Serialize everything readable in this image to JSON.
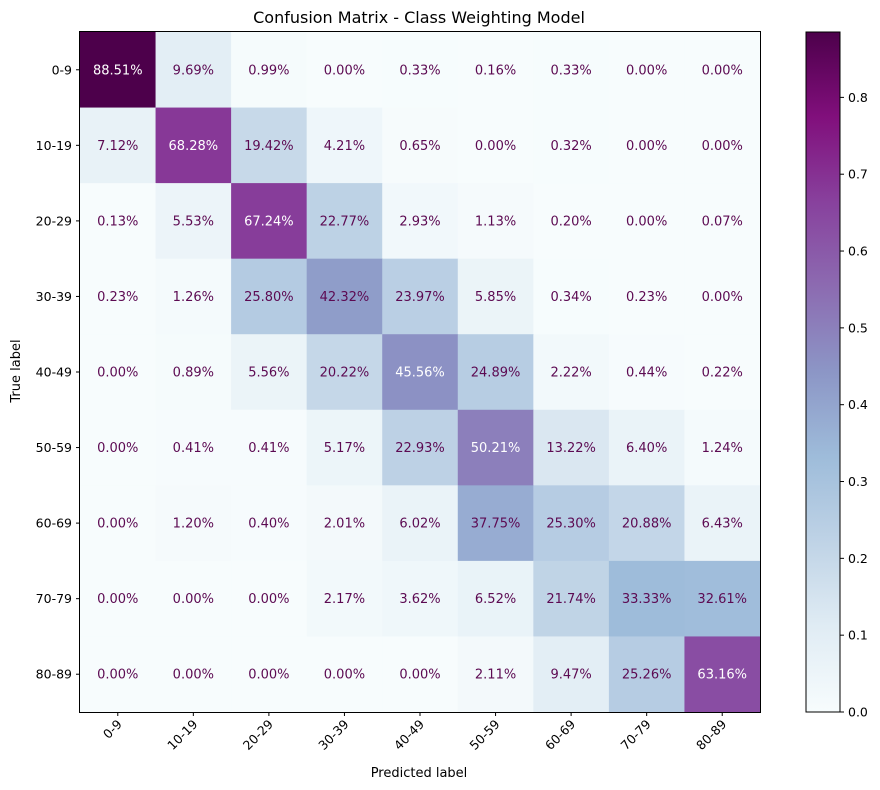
{
  "chart_data": {
    "type": "heatmap",
    "title": "Confusion Matrix - Class Weighting Model",
    "xlabel": "Predicted label",
    "ylabel": "True label",
    "x_labels": [
      "0-9",
      "10-19",
      "20-29",
      "30-39",
      "40-49",
      "50-59",
      "60-69",
      "70-79",
      "80-89"
    ],
    "y_labels": [
      "0-9",
      "10-19",
      "20-29",
      "30-39",
      "40-49",
      "50-59",
      "60-69",
      "70-79",
      "80-89"
    ],
    "values": [
      [
        88.51,
        9.69,
        0.99,
        0.0,
        0.33,
        0.16,
        0.33,
        0.0,
        0.0
      ],
      [
        7.12,
        68.28,
        19.42,
        4.21,
        0.65,
        0.0,
        0.32,
        0.0,
        0.0
      ],
      [
        0.13,
        5.53,
        67.24,
        22.77,
        2.93,
        1.13,
        0.2,
        0.0,
        0.07
      ],
      [
        0.23,
        1.26,
        25.8,
        42.32,
        23.97,
        5.85,
        0.34,
        0.23,
        0.0
      ],
      [
        0.0,
        0.89,
        5.56,
        20.22,
        45.56,
        24.89,
        2.22,
        0.44,
        0.22
      ],
      [
        0.0,
        0.41,
        0.41,
        5.17,
        22.93,
        50.21,
        13.22,
        6.4,
        1.24
      ],
      [
        0.0,
        1.2,
        0.4,
        2.01,
        6.02,
        37.75,
        25.3,
        20.88,
        6.43
      ],
      [
        0.0,
        0.0,
        0.0,
        2.17,
        3.62,
        6.52,
        21.74,
        33.33,
        32.61
      ],
      [
        0.0,
        0.0,
        0.0,
        0.0,
        0.0,
        2.11,
        9.47,
        25.26,
        63.16
      ]
    ],
    "value_format": "percent",
    "colormap": "BuPu",
    "colorbar": {
      "range": [
        0.0,
        0.8851
      ],
      "ticks": [
        "0.0",
        "0.1",
        "0.2",
        "0.3",
        "0.4",
        "0.5",
        "0.6",
        "0.7",
        "0.8"
      ]
    },
    "text_colors": {
      "dark": "#5c0a52",
      "light": "#ffffff"
    }
  }
}
